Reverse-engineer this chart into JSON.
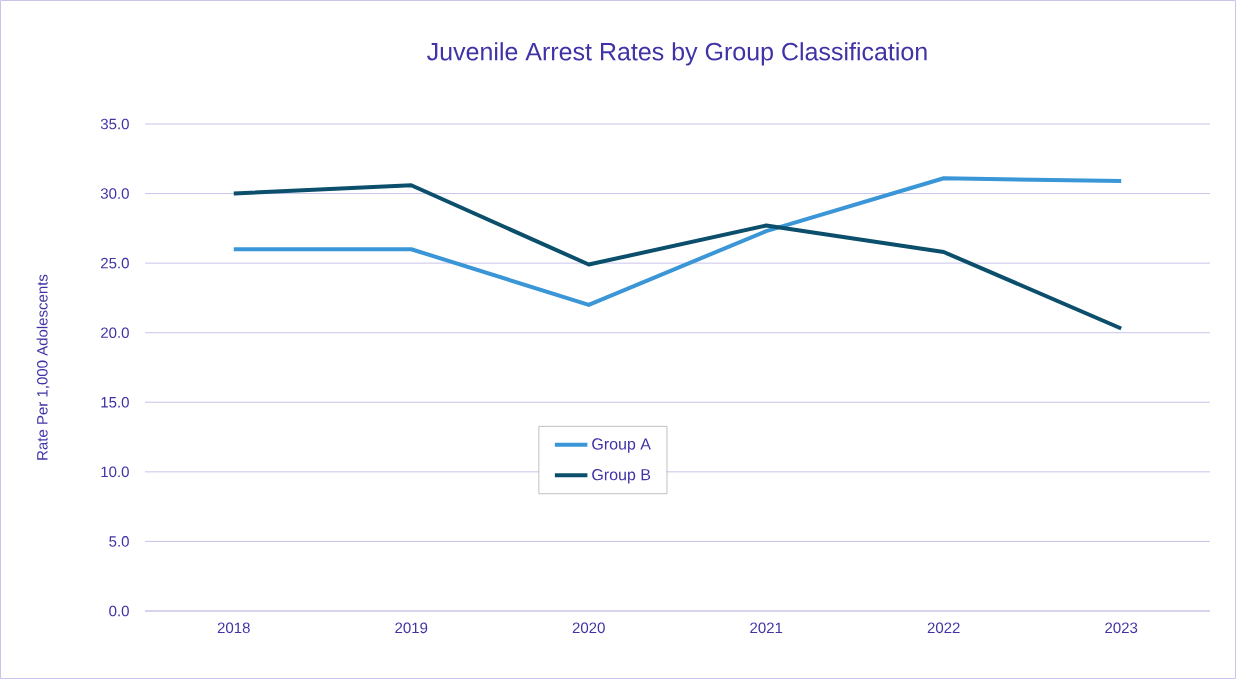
{
  "chart_data": {
    "type": "line",
    "title": "Juvenile Arrest Rates by Group Classification",
    "ylabel": "Rate Per 1,000 Adolescents",
    "categories": [
      "2018",
      "2019",
      "2020",
      "2021",
      "2022",
      "2023"
    ],
    "series": [
      {
        "name": "Group A",
        "color": "#3a96d6",
        "values": [
          26.0,
          26.0,
          22.0,
          27.3,
          31.1,
          30.9
        ]
      },
      {
        "name": "Group B",
        "color": "#0b4f6c",
        "values": [
          30.0,
          30.6,
          24.9,
          27.7,
          25.8,
          20.3
        ]
      }
    ],
    "ylim": [
      0,
      35
    ],
    "yticks": [
      {
        "value": 0,
        "label": "0.0"
      },
      {
        "value": 5,
        "label": "5.0"
      },
      {
        "value": 10,
        "label": "10.0"
      },
      {
        "value": 15,
        "label": "15.0"
      },
      {
        "value": 20,
        "label": "20.0"
      },
      {
        "value": 25,
        "label": "25.0"
      },
      {
        "value": 30,
        "label": "30.0"
      },
      {
        "value": 35,
        "label": "35.0"
      }
    ],
    "grid": "y",
    "legend": "center",
    "marker": "none",
    "line_style": "solid"
  }
}
